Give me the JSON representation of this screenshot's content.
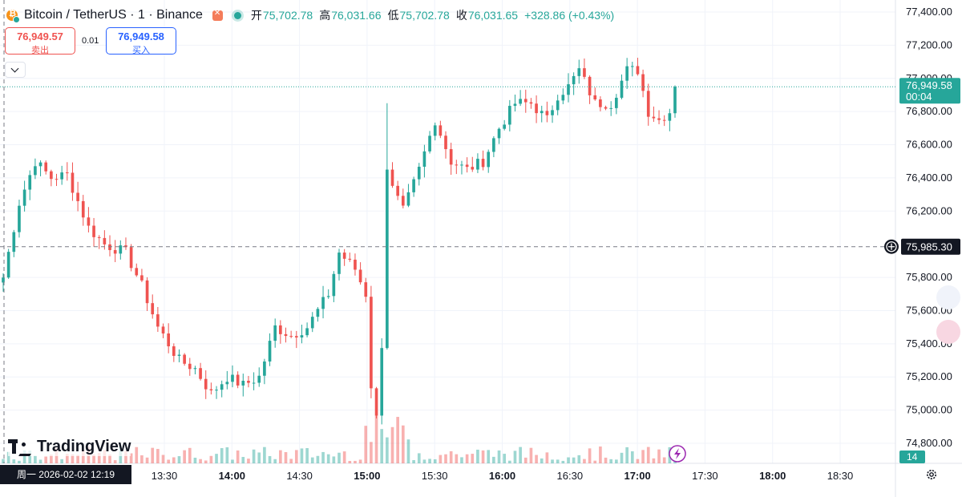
{
  "header": {
    "symbol_title": "Bitcoin / TetherUS · 1 · Binance",
    "ohlc": [
      {
        "key": "开",
        "value": "75,702.78"
      },
      {
        "key": "高",
        "value": "76,031.66"
      },
      {
        "key": "低",
        "value": "75,702.78"
      },
      {
        "key": "收",
        "value": "76,031.65"
      }
    ],
    "change": "+328.86 (+0.43%)"
  },
  "trade": {
    "sell_price": "76,949.57",
    "sell_label": "卖出",
    "spread": "0.01",
    "buy_price": "76,949.58",
    "buy_label": "买入"
  },
  "logo_text": "TradingView",
  "date_label": "周一 2026-02-02   12:19",
  "colors": {
    "up": "#26a69a",
    "down": "#ef5350",
    "crosshair_label": "#131722"
  },
  "icons": [
    "bitcoin-icon",
    "flag-icon",
    "status-dot-icon",
    "chevron-down-icon",
    "tradingview-logo-icon",
    "lightning-icon",
    "plus-circle-icon",
    "gear-icon"
  ],
  "chart_data": {
    "type": "candlestick",
    "x_ticks": [
      "13:30",
      "14:00",
      "14:30",
      "15:00",
      "15:30",
      "16:00",
      "16:30",
      "17:00",
      "17:30",
      "18:00",
      "18:30"
    ],
    "y_ticks": [
      "77,400.00",
      "77,200.00",
      "77,000.00",
      "76,800.00",
      "76,600.00",
      "76,400.00",
      "76,200.00",
      "75,800.00",
      "75,600.00",
      "75,400.00",
      "75,200.00",
      "75,000.00",
      "74,800.00"
    ],
    "ylim": [
      74700,
      77430
    ],
    "last_price": {
      "value": 76949.58,
      "label": "76,949.58",
      "countdown": "00:04"
    },
    "crosshair": {
      "value": 75985.3,
      "label": "75,985.30"
    },
    "volume_last": "14",
    "close_path": [
      [
        0,
        75800
      ],
      [
        3,
        76250
      ],
      [
        6,
        76500
      ],
      [
        9,
        76400
      ],
      [
        12,
        76420
      ],
      [
        16,
        76100
      ],
      [
        19,
        76000
      ],
      [
        23,
        75950
      ],
      [
        26,
        75750
      ],
      [
        29,
        75500
      ],
      [
        33,
        75300
      ],
      [
        36,
        75250
      ],
      [
        39,
        75100
      ],
      [
        42,
        75200
      ],
      [
        45,
        75150
      ],
      [
        48,
        75200
      ],
      [
        51,
        75500
      ],
      [
        54,
        75450
      ],
      [
        57,
        75500
      ],
      [
        61,
        75700
      ],
      [
        63,
        75950
      ],
      [
        66,
        75850
      ],
      [
        68,
        75700
      ],
      [
        69,
        75150
      ],
      [
        70,
        74950
      ],
      [
        71,
        75400
      ],
      [
        72,
        76400
      ],
      [
        75,
        76200
      ],
      [
        78,
        76450
      ],
      [
        81,
        76750
      ],
      [
        84,
        76500
      ],
      [
        87,
        76450
      ],
      [
        90,
        76500
      ],
      [
        93,
        76700
      ],
      [
        96,
        76850
      ],
      [
        99,
        76850
      ],
      [
        102,
        76750
      ],
      [
        104,
        76900
      ],
      [
        106,
        76950
      ],
      [
        108,
        77050
      ],
      [
        111,
        76850
      ],
      [
        114,
        76850
      ],
      [
        117,
        77050
      ],
      [
        119,
        77050
      ],
      [
        121,
        76800
      ],
      [
        123,
        76750
      ],
      [
        125,
        76800
      ],
      [
        126,
        76950
      ]
    ]
  }
}
